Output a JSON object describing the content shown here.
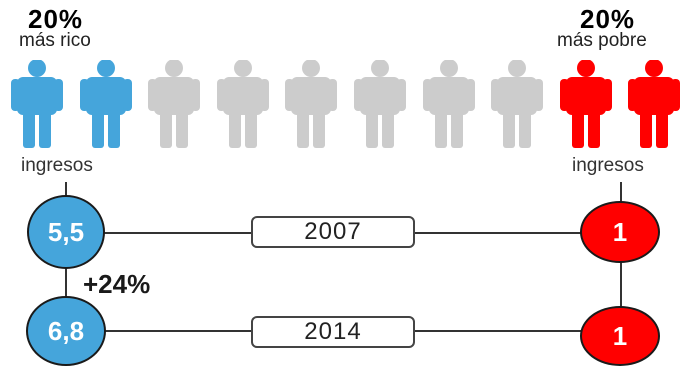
{
  "left": {
    "percent": "20%",
    "label": "más rico",
    "income_label": "ingresos",
    "color": "#45a5db"
  },
  "right": {
    "percent": "20%",
    "label": "más pobre",
    "income_label": "ingresos",
    "color": "#ff0000"
  },
  "people": {
    "total": 10,
    "colors": [
      "#45a5db",
      "#45a5db",
      "#cccccc",
      "#cccccc",
      "#cccccc",
      "#cccccc",
      "#cccccc",
      "#cccccc",
      "#ff0000",
      "#ff0000"
    ]
  },
  "rows": [
    {
      "year": "2007",
      "rich_value": "5,5",
      "poor_value": "1"
    },
    {
      "year": "2014",
      "rich_value": "6,8",
      "poor_value": "1"
    }
  ],
  "change": "+24%"
}
